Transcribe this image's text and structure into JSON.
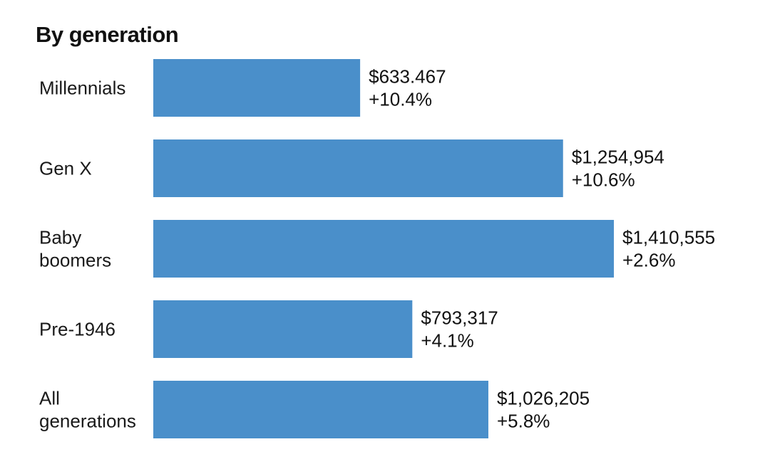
{
  "chart_data": {
    "type": "bar",
    "orientation": "horizontal",
    "title": "By generation",
    "categories": [
      [
        "Millennials"
      ],
      [
        "Gen X"
      ],
      [
        "Baby",
        "boomers"
      ],
      [
        "Pre-1946"
      ],
      [
        "All",
        "generations"
      ]
    ],
    "values": [
      633467,
      1254954,
      1410555,
      793317,
      1026205
    ],
    "value_labels": [
      "$633.467",
      "$1,254,954",
      "$1,410,555",
      "$793,317",
      "$1,026,205"
    ],
    "change_labels": [
      "+10.4%",
      "+10.6%",
      "+2.6%",
      "+4.1%",
      "+5.8%"
    ],
    "xlim": [
      0,
      1410555
    ],
    "grid": false,
    "legend": "none",
    "bar_color": "#4a8fca"
  }
}
